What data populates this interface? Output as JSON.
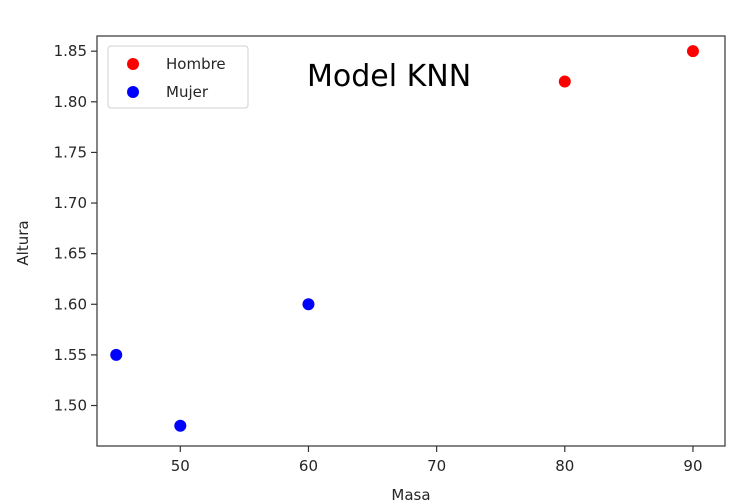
{
  "chart_data": {
    "type": "scatter",
    "xlabel": "Masa",
    "ylabel": "Altura",
    "xlim": [
      43.5,
      92.5
    ],
    "ylim": [
      1.46,
      1.865
    ],
    "xticks": [
      50,
      60,
      70,
      80,
      90
    ],
    "yticks": [
      1.5,
      1.55,
      1.6,
      1.65,
      1.7,
      1.75,
      1.8,
      1.85
    ],
    "xtick_labels": [
      "50",
      "60",
      "70",
      "80",
      "90"
    ],
    "ytick_labels": [
      "1.50",
      "1.55",
      "1.60",
      "1.65",
      "1.70",
      "1.75",
      "1.80",
      "1.85"
    ],
    "grid": false,
    "legend_position": "top-left",
    "annotation": "Model KNN",
    "series": [
      {
        "name": "Hombre",
        "color": "#ff0000",
        "points": [
          {
            "x": 80,
            "y": 1.82
          },
          {
            "x": 90,
            "y": 1.85
          }
        ]
      },
      {
        "name": "Mujer",
        "color": "#0000ff",
        "points": [
          {
            "x": 45,
            "y": 1.55
          },
          {
            "x": 50,
            "y": 1.48
          },
          {
            "x": 60,
            "y": 1.6
          }
        ]
      }
    ]
  }
}
